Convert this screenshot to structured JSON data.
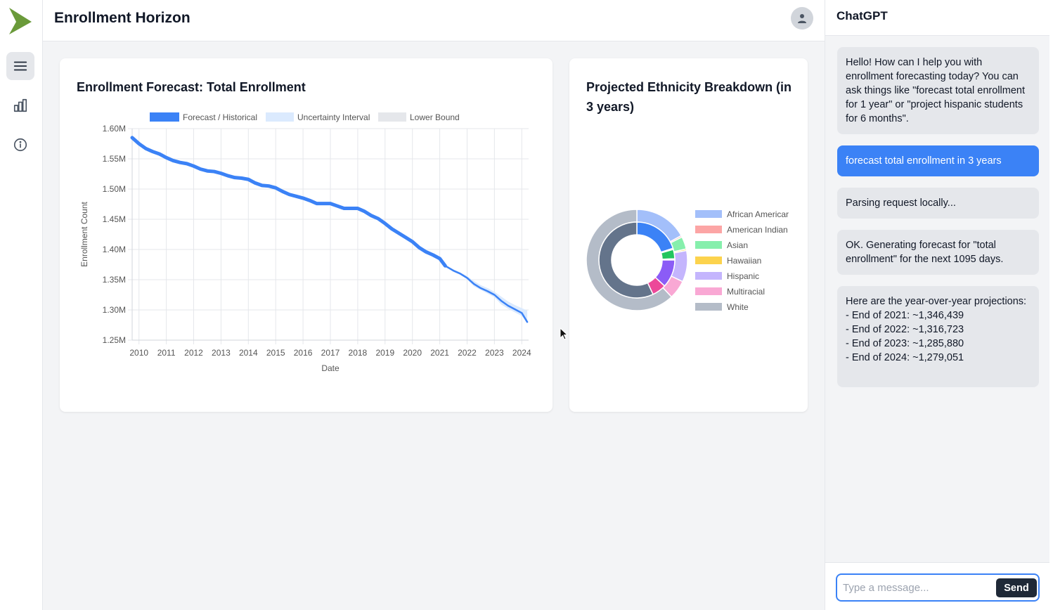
{
  "app": {
    "title": "Enrollment Horizon",
    "accent_color": "#3b82f6",
    "logo_color": "#6a9a3a"
  },
  "sidebar": {
    "items": [
      {
        "icon": "menu-icon",
        "active": true
      },
      {
        "icon": "bar-chart-icon",
        "active": false
      },
      {
        "icon": "info-icon",
        "active": false
      }
    ]
  },
  "header": {
    "avatar_icon": "user-icon"
  },
  "forecast_card": {
    "title": "Enrollment Forecast: Total Enrollment"
  },
  "ethnicity_card": {
    "title": "Projected Ethnicity Breakdown (in 3 years)"
  },
  "chat": {
    "title": "ChatGPT",
    "messages": [
      {
        "role": "bot",
        "text": "Hello! How can I help you with enrollment forecasting today? You can ask things like \"forecast total enrollment for 1 year\" or \"project hispanic students for 6 months\"."
      },
      {
        "role": "user",
        "text": "forecast total enrollment in 3 years"
      },
      {
        "role": "bot",
        "text": "Parsing request locally..."
      },
      {
        "role": "bot",
        "text": "OK. Generating forecast for \"total enrollment\" for the next 1095 days."
      },
      {
        "role": "bot",
        "text": "Here are the year-over-year projections:\n- End of 2021: ~1,346,439\n- End of 2022: ~1,316,723\n- End of 2023: ~1,285,880\n- End of 2024: ~1,279,051"
      }
    ],
    "input": {
      "value": "",
      "placeholder": "Type a message..."
    },
    "send_label": "Send"
  },
  "chart_data": [
    {
      "type": "line",
      "title": "",
      "xlabel": "Date",
      "ylabel": "Enrollment Count",
      "x_ticks": [
        "2010",
        "2011",
        "2012",
        "2013",
        "2014",
        "2015",
        "2016",
        "2017",
        "2018",
        "2019",
        "2020",
        "2021",
        "2022",
        "2023",
        "2024"
      ],
      "y_ticks": [
        "1.25M",
        "1.30M",
        "1.35M",
        "1.40M",
        "1.45M",
        "1.50M",
        "1.55M",
        "1.60M"
      ],
      "ylim": [
        1250000,
        1600000
      ],
      "xlim": [
        2009.75,
        2024.25
      ],
      "grid": true,
      "legend_position": "top",
      "legend": [
        "Forecast / Historical",
        "Uncertainty Interval",
        "Lower Bound"
      ],
      "series": [
        {
          "name": "Forecast / Historical",
          "color": "#3b82f6",
          "x": [
            2009.75,
            2010.0,
            2010.25,
            2010.5,
            2010.75,
            2011.0,
            2011.25,
            2011.5,
            2011.75,
            2012.0,
            2012.25,
            2012.5,
            2012.75,
            2013.0,
            2013.25,
            2013.5,
            2013.75,
            2014.0,
            2014.25,
            2014.5,
            2014.75,
            2015.0,
            2015.25,
            2015.5,
            2015.75,
            2016.0,
            2016.25,
            2016.5,
            2016.75,
            2017.0,
            2017.25,
            2017.5,
            2017.75,
            2018.0,
            2018.25,
            2018.5,
            2018.75,
            2019.0,
            2019.25,
            2019.5,
            2019.75,
            2020.0,
            2020.25,
            2020.5,
            2020.75,
            2021.0,
            2021.2
          ],
          "y": [
            1585000,
            1575000,
            1567000,
            1562000,
            1558000,
            1552000,
            1547000,
            1544000,
            1542000,
            1538000,
            1533000,
            1530000,
            1529000,
            1526000,
            1522000,
            1519000,
            1518000,
            1516000,
            1510000,
            1506000,
            1505000,
            1502000,
            1496000,
            1491000,
            1488000,
            1485000,
            1481000,
            1476000,
            1476000,
            1476000,
            1472000,
            1468000,
            1468000,
            1468000,
            1463000,
            1456000,
            1451000,
            1443000,
            1434000,
            1427000,
            1420000,
            1413000,
            1403000,
            1396000,
            1391000,
            1385000,
            1373000
          ]
        },
        {
          "name": "Forecast",
          "color": "#3b82f6",
          "x": [
            2021.2,
            2021.5,
            2021.75,
            2022.0,
            2022.25,
            2022.5,
            2022.75,
            2023.0,
            2023.25,
            2023.5,
            2023.75,
            2024.0,
            2024.2
          ],
          "y": [
            1373000,
            1365000,
            1360000,
            1353000,
            1343000,
            1336000,
            1331000,
            1325000,
            1315000,
            1307000,
            1301000,
            1295000,
            1280000
          ]
        }
      ],
      "uncertainty": {
        "name": "Uncertainty Interval",
        "x": [
          2021.2,
          2021.5,
          2021.75,
          2022.0,
          2022.25,
          2022.5,
          2022.75,
          2023.0,
          2023.25,
          2023.5,
          2023.75,
          2024.0,
          2024.2
        ],
        "upper": [
          1374000,
          1367000,
          1362000,
          1356000,
          1348000,
          1341000,
          1336000,
          1330000,
          1322000,
          1314000,
          1308000,
          1303000,
          1299000
        ],
        "lower": [
          1372000,
          1363000,
          1358000,
          1351000,
          1339000,
          1333000,
          1327000,
          1321000,
          1309000,
          1302000,
          1296000,
          1290000,
          1280000
        ]
      }
    },
    {
      "type": "pie",
      "title": "",
      "legend_position": "right",
      "legend": [
        "African Americar",
        "American Indian",
        "Asian",
        "Hawaiian",
        "Hispanic",
        "Multiracial",
        "White"
      ],
      "outer_ring": {
        "labels": [
          "African Americar",
          "American Indian",
          "Asian",
          "Hawaiian",
          "Hispanic",
          "Multiracial",
          "White"
        ],
        "colors": [
          "#a3bffa",
          "#fca5a5",
          "#86efac",
          "#fcd34d",
          "#c4b5fd",
          "#f9a8d4",
          "#b4bcc8"
        ],
        "values": [
          17,
          0.5,
          4,
          0.5,
          10,
          6,
          62
        ]
      },
      "inner_ring": {
        "labels": [
          "African Americar",
          "American Indian",
          "Asian",
          "Hawaiian",
          "Hispanic",
          "Multiracial",
          "White"
        ],
        "colors": [
          "#3b82f6",
          "#ef4444",
          "#22c55e",
          "#eab308",
          "#8b5cf6",
          "#ec4899",
          "#64748b"
        ],
        "values": [
          20,
          0.5,
          4,
          0.5,
          12,
          6,
          57
        ]
      }
    }
  ]
}
